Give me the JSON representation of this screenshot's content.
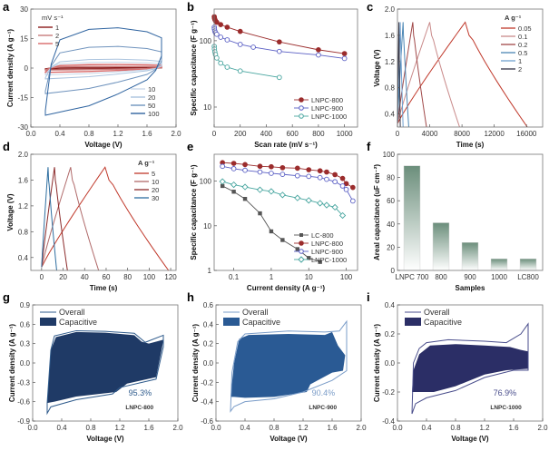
{
  "chart_data": [
    {
      "panel": "a",
      "type": "line",
      "subtype": "cyclic-voltammetry",
      "xlabel": "Voltage (V)",
      "ylabel": "Current density (A g-1)",
      "xlim": [
        0.0,
        2.0
      ],
      "ylim": [
        -30,
        30
      ],
      "xticks": [
        "0.0",
        "0.4",
        "0.8",
        "1.2",
        "1.6",
        "2.0"
      ],
      "yticks": [
        "-30",
        "-15",
        "0",
        "15",
        "30"
      ],
      "legend_title": "mV s-1",
      "legend_groups": [
        {
          "placement": "top-left",
          "entries": [
            "1",
            "2",
            "5"
          ]
        },
        {
          "placement": "bottom-right",
          "entries": [
            "10",
            "20",
            "50",
            "100"
          ]
        }
      ],
      "series": [
        {
          "name": "1",
          "color": "#8b1a1a",
          "upper": 0.4,
          "lower": -0.5
        },
        {
          "name": "2",
          "color": "#c77c7c",
          "upper": 0.8,
          "lower": -1.0
        },
        {
          "name": "5",
          "color": "#d96a6a",
          "upper": 1.8,
          "lower": -2.2
        },
        {
          "name": "10",
          "color": "#c9d9ea",
          "upper": 3.0,
          "lower": -3.5
        },
        {
          "name": "20",
          "color": "#aac3de",
          "upper": 4.5,
          "lower": -5.5
        },
        {
          "name": "50",
          "color": "#6f93bd",
          "upper": 11.0,
          "lower": -13.0
        },
        {
          "name": "100",
          "color": "#2f64a0",
          "upper": 20.5,
          "lower": -24.0
        }
      ]
    },
    {
      "panel": "b",
      "type": "line",
      "xlabel": "Scan rate (mV s-1)",
      "ylabel": "Specific capacitance (F g-1)",
      "xlim": [
        0,
        1100
      ],
      "ylim": [
        5,
        300
      ],
      "yscale": "log",
      "xticks": [
        "0",
        "200",
        "400",
        "600",
        "800",
        "1000"
      ],
      "yticks": [
        "10",
        "100"
      ],
      "legend_placement": "bottom-right",
      "series": [
        {
          "name": "LNPC-800",
          "color": "#9b2c2c",
          "marker": "filled-circle",
          "x": [
            1,
            2,
            5,
            10,
            20,
            50,
            100,
            200,
            500,
            800,
            1000
          ],
          "y": [
            230,
            220,
            210,
            200,
            190,
            175,
            160,
            138,
            96,
            73,
            64
          ]
        },
        {
          "name": "LNPC-900",
          "color": "#5a5fc4",
          "marker": "open-circle",
          "x": [
            1,
            2,
            5,
            10,
            20,
            50,
            100,
            200,
            300,
            500,
            800,
            1000
          ],
          "y": [
            160,
            150,
            140,
            132,
            125,
            113,
            103,
            88,
            80,
            69,
            61,
            54
          ]
        },
        {
          "name": "LNPC-1000",
          "color": "#49a6a0",
          "marker": "open-circle",
          "x": [
            1,
            2,
            5,
            10,
            20,
            50,
            100,
            200,
            500
          ],
          "y": [
            82,
            75,
            68,
            62,
            55,
            46,
            40,
            35,
            28
          ]
        }
      ]
    },
    {
      "panel": "c",
      "type": "line",
      "subtype": "galvanostatic-charge-discharge",
      "xlabel": "Time (s)",
      "ylabel": "Voltage (V)",
      "xlim": [
        0,
        18000
      ],
      "ylim": [
        0.2,
        2.0
      ],
      "xticks": [
        "0",
        "4000",
        "8000",
        "12000",
        "16000"
      ],
      "yticks": [
        "0.4",
        "0.8",
        "1.2",
        "1.6",
        "2.0"
      ],
      "legend_title": "A g-1",
      "legend_placement": "top-right",
      "series": [
        {
          "name": "0.05",
          "color": "#c0392b",
          "t_peak": 8400,
          "t_end": 16100
        },
        {
          "name": "0.1",
          "color": "#c98a8a",
          "t_peak": 4000,
          "t_end": 7700
        },
        {
          "name": "0.2",
          "color": "#a04848",
          "t_peak": 1900,
          "t_end": 3600
        },
        {
          "name": "0.5",
          "color": "#4a86b4",
          "t_peak": 700,
          "t_end": 1400
        },
        {
          "name": "1",
          "color": "#6fa0d0",
          "t_peak": 350,
          "t_end": 700
        },
        {
          "name": "2",
          "color": "#333344",
          "t_peak": 180,
          "t_end": 350
        }
      ]
    },
    {
      "panel": "d",
      "type": "line",
      "subtype": "galvanostatic-charge-discharge",
      "xlabel": "Time (s)",
      "ylabel": "Voltage (V)",
      "xlim": [
        -10,
        125
      ],
      "ylim": [
        0.2,
        2.0
      ],
      "xticks": [
        "0",
        "20",
        "40",
        "60",
        "80",
        "100",
        "120"
      ],
      "yticks": [
        "0.4",
        "0.8",
        "1.2",
        "1.6",
        "2.0"
      ],
      "legend_title": "A g-1",
      "legend_placement": "top-right",
      "series": [
        {
          "name": "5",
          "color": "#c0392b",
          "t_peak": 59,
          "t_end": 118
        },
        {
          "name": "10",
          "color": "#b06a6a",
          "t_peak": 27,
          "t_end": 53
        },
        {
          "name": "20",
          "color": "#8b2a2a",
          "t_peak": 12,
          "t_end": 24
        },
        {
          "name": "30",
          "color": "#2e6ea0",
          "t_peak": 6,
          "t_end": 14
        }
      ]
    },
    {
      "panel": "e",
      "type": "line",
      "xlabel": "Current density (A g-1)",
      "ylabel": "Specific capacitance (F g-1)",
      "xscale": "log",
      "yscale": "log",
      "xlim": [
        0.03,
        200
      ],
      "ylim": [
        1,
        400
      ],
      "xticks": [
        "0.1",
        "1",
        "10",
        "100"
      ],
      "yticks": [
        "1",
        "10",
        "100"
      ],
      "legend_placement": "bottom-right",
      "series": [
        {
          "name": "LC-800",
          "color": "#555555",
          "marker": "filled-square",
          "x": [
            0.05,
            0.1,
            0.2,
            0.5,
            1,
            2,
            5,
            10,
            20
          ],
          "y": [
            78,
            58,
            40,
            19,
            7.5,
            4.8,
            3.0,
            1.9,
            1.55
          ]
        },
        {
          "name": "LNPC-800",
          "color": "#9b2c2c",
          "marker": "filled-circle",
          "x": [
            0.05,
            0.1,
            0.2,
            0.5,
            1,
            2,
            5,
            10,
            20,
            30,
            50,
            80,
            100,
            150
          ],
          "y": [
            260,
            250,
            235,
            215,
            210,
            200,
            195,
            180,
            170,
            160,
            140,
            115,
            88,
            72
          ]
        },
        {
          "name": "LNPC-900",
          "color": "#5a5fc4",
          "marker": "open-circle",
          "x": [
            0.05,
            0.1,
            0.2,
            0.5,
            1,
            2,
            5,
            10,
            20,
            30,
            50,
            80,
            100,
            150
          ],
          "y": [
            215,
            190,
            175,
            160,
            150,
            142,
            132,
            128,
            120,
            110,
            97,
            78,
            65,
            36
          ]
        },
        {
          "name": "LNPC-1000",
          "color": "#49a6a0",
          "marker": "open-diamond",
          "x": [
            0.05,
            0.1,
            0.2,
            0.5,
            1,
            2,
            5,
            10,
            20,
            30,
            50,
            80
          ],
          "y": [
            98,
            83,
            74,
            64,
            59,
            49,
            42,
            37,
            32,
            29,
            26,
            17
          ]
        }
      ]
    },
    {
      "panel": "f",
      "type": "bar",
      "xlabel": "Samples",
      "ylabel": "Areal capacitance (uF cm-2)",
      "ylim": [
        0,
        100
      ],
      "yticks": [
        "0",
        "20",
        "40",
        "60",
        "80",
        "100"
      ],
      "categories": [
        "LNPC 700",
        "800",
        "900",
        "1000",
        "LC800"
      ],
      "values": [
        90,
        41,
        24,
        10,
        10
      ],
      "bar_color": "#6b8e7b"
    },
    {
      "panel": "g",
      "type": "area",
      "subtype": "capacitive-contribution",
      "xlabel": "Voltage (V)",
      "ylabel": "Current density (A g-1)",
      "xlim": [
        0.0,
        2.0
      ],
      "ylim": [
        -0.9,
        0.9
      ],
      "xticks": [
        "0.0",
        "0.4",
        "0.8",
        "1.2",
        "1.6",
        "2.0"
      ],
      "yticks": [
        "-0.9",
        "-0.6",
        "-0.3",
        "0.0",
        "0.3",
        "0.6",
        "0.9"
      ],
      "legend": [
        "Overall",
        "Capacitive"
      ],
      "legend_placement": "top-left",
      "annotation_percent": "95.3%",
      "annotation_sample": "LNPC-800",
      "fill_color": "#1f3a66",
      "line_color": "#2f5b8c",
      "overall": {
        "upper": [
          [
            0.2,
            -0.62
          ],
          [
            0.25,
            0.2
          ],
          [
            0.3,
            0.42
          ],
          [
            0.6,
            0.5
          ],
          [
            1.0,
            0.49
          ],
          [
            1.4,
            0.46
          ],
          [
            1.55,
            0.32
          ],
          [
            1.8,
            0.43
          ],
          [
            1.8,
            0.25
          ],
          [
            1.7,
            -0.25
          ],
          [
            1.2,
            -0.38
          ],
          [
            1.1,
            -0.48
          ],
          [
            0.6,
            -0.57
          ],
          [
            0.25,
            -0.68
          ],
          [
            0.2,
            -0.78
          ]
        ]
      },
      "capacitive": {
        "polygon": [
          [
            0.2,
            -0.62
          ],
          [
            0.25,
            0.2
          ],
          [
            0.32,
            0.4
          ],
          [
            0.6,
            0.48
          ],
          [
            1.0,
            0.47
          ],
          [
            1.4,
            0.43
          ],
          [
            1.5,
            0.33
          ],
          [
            1.6,
            0.3
          ],
          [
            1.8,
            0.36
          ],
          [
            1.78,
            0.22
          ],
          [
            1.7,
            -0.22
          ],
          [
            1.3,
            -0.32
          ],
          [
            1.15,
            -0.45
          ],
          [
            0.6,
            -0.52
          ],
          [
            0.3,
            -0.6
          ]
        ]
      }
    },
    {
      "panel": "h",
      "type": "area",
      "subtype": "capacitive-contribution",
      "xlabel": "Voltage (V)",
      "ylabel": "Current density (A g-1)",
      "xlim": [
        0.0,
        2.0
      ],
      "ylim": [
        -0.6,
        0.6
      ],
      "xticks": [
        "0.0",
        "0.4",
        "0.8",
        "1.2",
        "1.6",
        "2.0"
      ],
      "yticks": [
        "-0.6",
        "-0.4",
        "-0.2",
        "0.0",
        "0.2",
        "0.4",
        "0.6"
      ],
      "legend": [
        "Overall",
        "Capacitive"
      ],
      "legend_placement": "top-left",
      "annotation_percent": "90.4%",
      "annotation_sample": "LNPC-900",
      "fill_color": "#2a5a94",
      "line_color": "#7a9cc8",
      "overall": {
        "upper": [
          [
            0.2,
            -0.5
          ],
          [
            0.22,
            -0.1
          ],
          [
            0.3,
            0.22
          ],
          [
            0.4,
            0.3
          ],
          [
            1.0,
            0.33
          ],
          [
            1.5,
            0.32
          ],
          [
            1.7,
            0.33
          ],
          [
            1.8,
            0.43
          ],
          [
            1.8,
            -0.08
          ],
          [
            1.6,
            -0.18
          ],
          [
            1.2,
            -0.3
          ],
          [
            0.8,
            -0.37
          ],
          [
            0.4,
            -0.4
          ],
          [
            0.25,
            -0.45
          ],
          [
            0.2,
            -0.5
          ]
        ]
      },
      "capacitive": {
        "polygon": [
          [
            0.2,
            -0.35
          ],
          [
            0.25,
            0.0
          ],
          [
            0.32,
            0.25
          ],
          [
            0.45,
            0.29
          ],
          [
            1.0,
            0.3
          ],
          [
            1.5,
            0.29
          ],
          [
            1.6,
            0.32
          ],
          [
            1.68,
            0.18
          ],
          [
            1.78,
            0.08
          ],
          [
            1.75,
            -0.08
          ],
          [
            1.6,
            -0.1
          ],
          [
            1.3,
            -0.22
          ],
          [
            1.25,
            -0.3
          ],
          [
            0.8,
            -0.35
          ],
          [
            0.4,
            -0.36
          ],
          [
            0.25,
            -0.35
          ]
        ]
      }
    },
    {
      "panel": "i",
      "type": "area",
      "subtype": "capacitive-contribution",
      "xlabel": "Voltage (V)",
      "ylabel": "Current density (A g-1)",
      "xlim": [
        0.0,
        2.0
      ],
      "ylim": [
        -0.4,
        0.4
      ],
      "xticks": [
        "0.0",
        "0.4",
        "0.8",
        "1.2",
        "1.6",
        "2.0"
      ],
      "yticks": [
        "-0.4",
        "-0.2",
        "0.0",
        "0.2",
        "0.4"
      ],
      "legend": [
        "Overall",
        "Capacitive"
      ],
      "legend_placement": "top-left",
      "annotation_percent": "76.9%",
      "annotation_sample": "LNPC-1000",
      "fill_color": "#2b2e66",
      "line_color": "#4a4e8c",
      "overall": {
        "upper": [
          [
            0.2,
            -0.35
          ],
          [
            0.22,
            0.0
          ],
          [
            0.3,
            0.1
          ],
          [
            0.4,
            0.14
          ],
          [
            0.7,
            0.16
          ],
          [
            1.2,
            0.15
          ],
          [
            1.5,
            0.14
          ],
          [
            1.7,
            0.2
          ],
          [
            1.8,
            0.27
          ],
          [
            1.8,
            -0.05
          ],
          [
            1.6,
            -0.05
          ],
          [
            1.2,
            -0.1
          ],
          [
            0.8,
            -0.19
          ],
          [
            0.4,
            -0.24
          ],
          [
            0.25,
            -0.28
          ],
          [
            0.2,
            -0.35
          ]
        ]
      },
      "capacitive": {
        "polygon": [
          [
            0.2,
            -0.2
          ],
          [
            0.22,
            -0.05
          ],
          [
            0.3,
            0.06
          ],
          [
            0.45,
            0.12
          ],
          [
            0.8,
            0.13
          ],
          [
            1.2,
            0.12
          ],
          [
            1.55,
            0.11
          ],
          [
            1.7,
            0.09
          ],
          [
            1.8,
            0.08
          ],
          [
            1.8,
            -0.04
          ],
          [
            1.5,
            -0.05
          ],
          [
            1.2,
            -0.08
          ],
          [
            0.8,
            -0.16
          ],
          [
            0.5,
            -0.2
          ],
          [
            0.3,
            -0.2
          ]
        ]
      }
    }
  ]
}
